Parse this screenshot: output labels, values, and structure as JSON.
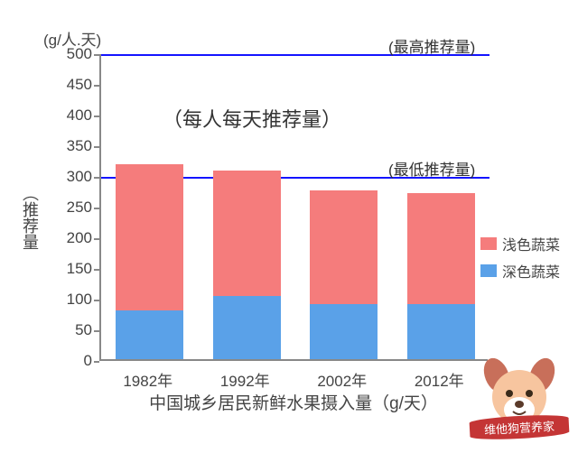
{
  "chart": {
    "type": "stacked-bar",
    "y_unit_label": "(g/人.天)",
    "y_side_label": "（推荐量",
    "subtitle": "（每人每天推荐量）",
    "x_axis_label": "中国城乡居民新鲜水果摄入量（g/天）",
    "background_color": "#ffffff",
    "axis_color": "#888888",
    "text_color": "#444444",
    "y": {
      "min": 0,
      "max": 500,
      "tick_step": 50,
      "ticks": [
        0,
        50,
        100,
        150,
        200,
        250,
        300,
        350,
        400,
        450,
        500
      ],
      "tick_fontsize": 17
    },
    "reference_lines": [
      {
        "value": 500,
        "label": "(最高推荐量)",
        "color": "#1414ff",
        "width": 2
      },
      {
        "value": 300,
        "label": "(最低推荐量)",
        "color": "#1414ff",
        "width": 2
      }
    ],
    "categories": [
      "1982年",
      "1992年",
      "2002年",
      "2012年"
    ],
    "category_fontsize": 17,
    "bar_width_ratio": 0.7,
    "series": [
      {
        "key": "dark",
        "label": "深色蔬菜",
        "color": "#5aa1e8",
        "values": [
          80,
          103,
          90,
          90
        ]
      },
      {
        "key": "light",
        "label": "浅色蔬菜",
        "color": "#f57c7c",
        "values": [
          238,
          205,
          185,
          180
        ]
      }
    ],
    "subtitle_fontsize": 22,
    "refline_label_fontsize": 17,
    "axis_label_fontsize": 19,
    "unit_fontsize": 17,
    "side_label_fontsize": 18
  },
  "legend": {
    "items": [
      {
        "swatch_color": "#f57c7c",
        "label": "浅色蔬菜"
      },
      {
        "swatch_color": "#5aa1e8",
        "label": "深色蔬菜"
      }
    ],
    "fontsize": 16
  },
  "mascot": {
    "face_color": "#f7c59f",
    "ear_color": "#c86f5a",
    "nose_color": "#5a3a2a",
    "banner_text": "维他狗营养家",
    "banner_color": "#c43535",
    "banner_text_color": "#ffffff",
    "banner_fontsize": 13
  }
}
